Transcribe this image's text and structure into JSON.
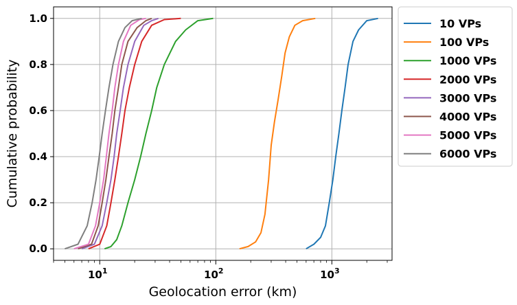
{
  "chart_data": {
    "type": "line",
    "xlabel": "Geolocation error (km)",
    "ylabel": "Cumulative probability",
    "xscale": "log",
    "xlim": [
      4,
      3300
    ],
    "ylim": [
      -0.05,
      1.05
    ],
    "grid": true,
    "legend_position": "outside-right",
    "x_ticks": [
      {
        "value": 10,
        "base": "10",
        "exp": "1"
      },
      {
        "value": 100,
        "base": "10",
        "exp": "2"
      },
      {
        "value": 1000,
        "base": "10",
        "exp": "3"
      }
    ],
    "y_ticks": [
      {
        "value": 0.0,
        "label": "0.0"
      },
      {
        "value": 0.2,
        "label": "0.2"
      },
      {
        "value": 0.4,
        "label": "0.4"
      },
      {
        "value": 0.6,
        "label": "0.6"
      },
      {
        "value": 0.8,
        "label": "0.8"
      },
      {
        "value": 1.0,
        "label": "1.0"
      }
    ],
    "series": [
      {
        "name": "10 VPs",
        "color": "#1f77b4",
        "points": [
          [
            600,
            0.0
          ],
          [
            700,
            0.02
          ],
          [
            800,
            0.05
          ],
          [
            880,
            0.1
          ],
          [
            950,
            0.2
          ],
          [
            1020,
            0.3
          ],
          [
            1080,
            0.4
          ],
          [
            1150,
            0.5
          ],
          [
            1220,
            0.6
          ],
          [
            1300,
            0.7
          ],
          [
            1380,
            0.8
          ],
          [
            1520,
            0.9
          ],
          [
            1700,
            0.95
          ],
          [
            2000,
            0.99
          ],
          [
            2500,
            1.0
          ]
        ]
      },
      {
        "name": "100 VPs",
        "color": "#ff7f0e",
        "points": [
          [
            160,
            0.0
          ],
          [
            190,
            0.01
          ],
          [
            220,
            0.03
          ],
          [
            245,
            0.07
          ],
          [
            265,
            0.15
          ],
          [
            285,
            0.3
          ],
          [
            300,
            0.45
          ],
          [
            320,
            0.55
          ],
          [
            345,
            0.65
          ],
          [
            370,
            0.75
          ],
          [
            395,
            0.85
          ],
          [
            430,
            0.92
          ],
          [
            480,
            0.97
          ],
          [
            560,
            0.99
          ],
          [
            720,
            1.0
          ]
        ]
      },
      {
        "name": "1000 VPs",
        "color": "#2ca02c",
        "points": [
          [
            11,
            0.0
          ],
          [
            12.5,
            0.01
          ],
          [
            14,
            0.04
          ],
          [
            15.5,
            0.1
          ],
          [
            17.5,
            0.2
          ],
          [
            20,
            0.3
          ],
          [
            22.5,
            0.4
          ],
          [
            25,
            0.5
          ],
          [
            28,
            0.6
          ],
          [
            31,
            0.7
          ],
          [
            36,
            0.8
          ],
          [
            45,
            0.9
          ],
          [
            55,
            0.95
          ],
          [
            70,
            0.99
          ],
          [
            95,
            1.0
          ]
        ]
      },
      {
        "name": "2000 VPs",
        "color": "#d62728",
        "points": [
          [
            8,
            0.0
          ],
          [
            10,
            0.02
          ],
          [
            11.5,
            0.1
          ],
          [
            12.5,
            0.2
          ],
          [
            13.5,
            0.3
          ],
          [
            14.5,
            0.4
          ],
          [
            15.5,
            0.5
          ],
          [
            16.5,
            0.6
          ],
          [
            18,
            0.7
          ],
          [
            20,
            0.8
          ],
          [
            23,
            0.9
          ],
          [
            28,
            0.97
          ],
          [
            36,
            0.995
          ],
          [
            50,
            1.0
          ]
        ]
      },
      {
        "name": "3000 VPs",
        "color": "#9467bd",
        "points": [
          [
            7,
            0.0
          ],
          [
            9,
            0.02
          ],
          [
            10.5,
            0.1
          ],
          [
            11.5,
            0.2
          ],
          [
            12.5,
            0.3
          ],
          [
            13.3,
            0.4
          ],
          [
            14,
            0.5
          ],
          [
            15,
            0.6
          ],
          [
            16,
            0.7
          ],
          [
            17.5,
            0.8
          ],
          [
            20,
            0.9
          ],
          [
            24,
            0.97
          ],
          [
            28,
            0.99
          ],
          [
            32,
            1.0
          ]
        ]
      },
      {
        "name": "4000 VPs",
        "color": "#8c564b",
        "points": [
          [
            6.5,
            0.0
          ],
          [
            8.5,
            0.02
          ],
          [
            9.7,
            0.1
          ],
          [
            10.5,
            0.2
          ],
          [
            11.3,
            0.3
          ],
          [
            12,
            0.4
          ],
          [
            12.8,
            0.5
          ],
          [
            13.5,
            0.6
          ],
          [
            14.5,
            0.7
          ],
          [
            15.5,
            0.8
          ],
          [
            17.5,
            0.9
          ],
          [
            21,
            0.96
          ],
          [
            25,
            0.99
          ],
          [
            28,
            1.0
          ]
        ]
      },
      {
        "name": "5000 VPs",
        "color": "#e377c2",
        "points": [
          [
            6,
            0.0
          ],
          [
            8,
            0.02
          ],
          [
            9.2,
            0.1
          ],
          [
            10,
            0.2
          ],
          [
            10.8,
            0.3
          ],
          [
            11.4,
            0.4
          ],
          [
            12,
            0.5
          ],
          [
            12.8,
            0.6
          ],
          [
            13.5,
            0.7
          ],
          [
            14.5,
            0.8
          ],
          [
            16,
            0.9
          ],
          [
            18.5,
            0.97
          ],
          [
            22,
            0.995
          ],
          [
            25,
            1.0
          ]
        ]
      },
      {
        "name": "6000 VPs",
        "color": "#7f7f7f",
        "points": [
          [
            5,
            0.0
          ],
          [
            6.5,
            0.02
          ],
          [
            7.8,
            0.1
          ],
          [
            8.6,
            0.2
          ],
          [
            9.3,
            0.3
          ],
          [
            9.9,
            0.4
          ],
          [
            10.5,
            0.5
          ],
          [
            11.2,
            0.6
          ],
          [
            12,
            0.7
          ],
          [
            13,
            0.8
          ],
          [
            14.5,
            0.9
          ],
          [
            16.5,
            0.96
          ],
          [
            19,
            0.99
          ],
          [
            23,
            1.0
          ]
        ]
      }
    ]
  }
}
